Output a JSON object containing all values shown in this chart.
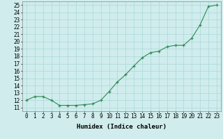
{
  "xlabel": "Humidex (Indice chaleur)",
  "ylabel": "",
  "x": [
    0,
    1,
    2,
    3,
    4,
    5,
    6,
    7,
    8,
    9,
    10,
    11,
    12,
    13,
    14,
    15,
    16,
    17,
    18,
    19,
    20,
    21,
    22,
    23
  ],
  "y": [
    12.0,
    12.5,
    12.5,
    12.0,
    11.3,
    11.3,
    11.3,
    11.4,
    11.5,
    12.0,
    13.2,
    14.5,
    15.5,
    16.7,
    17.8,
    18.5,
    18.7,
    19.3,
    19.5,
    19.5,
    20.5,
    22.3,
    24.8,
    25.0
  ],
  "xlim": [
    -0.5,
    23.5
  ],
  "ylim": [
    10.5,
    25.5
  ],
  "yticks": [
    11,
    12,
    13,
    14,
    15,
    16,
    17,
    18,
    19,
    20,
    21,
    22,
    23,
    24,
    25
  ],
  "xticks": [
    0,
    1,
    2,
    3,
    4,
    5,
    6,
    7,
    8,
    9,
    10,
    11,
    12,
    13,
    14,
    15,
    16,
    17,
    18,
    19,
    20,
    21,
    22,
    23
  ],
  "line_color": "#2e8b57",
  "marker_color": "#2e8b57",
  "bg_color": "#d0ecec",
  "grid_color": "#a8d8d8",
  "axis_fontsize": 6.5,
  "tick_fontsize": 5.5
}
